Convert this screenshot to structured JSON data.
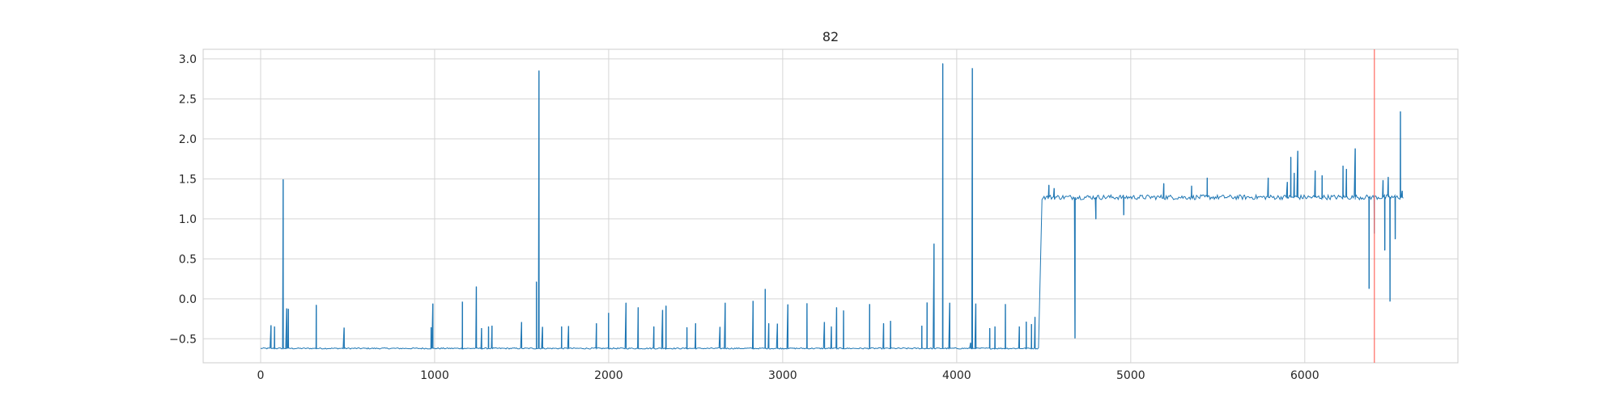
{
  "chart_data": {
    "type": "line",
    "title": "82",
    "xlabel": "",
    "ylabel": "",
    "xlim": [
      -330,
      6880
    ],
    "ylim": [
      -0.8,
      3.12
    ],
    "grid": true,
    "xticks": [
      0,
      1000,
      2000,
      3000,
      4000,
      5000,
      6000
    ],
    "yticks": [
      -0.5,
      0.0,
      0.5,
      1.0,
      1.5,
      2.0,
      2.5,
      3.0
    ],
    "xtick_labels": [
      "0",
      "1000",
      "2000",
      "3000",
      "4000",
      "5000",
      "6000"
    ],
    "ytick_labels": [
      "−0.5",
      "0.0",
      "0.5",
      "1.0",
      "1.5",
      "2.0",
      "2.5",
      "3.0"
    ],
    "series_color": "#1f77b4",
    "marker_line": {
      "x": 6400,
      "color": "#ff6961"
    },
    "segments": [
      {
        "x_start": 0,
        "x_end": 4470,
        "base": -0.62,
        "noise": 0.008
      },
      {
        "x_start": 4490,
        "x_end": 6570,
        "base": 1.27,
        "noise": 0.03
      }
    ],
    "jump": {
      "x": 4470,
      "from": -0.62,
      "to": 1.27
    },
    "spikes": [
      {
        "x": 60,
        "y": -0.33
      },
      {
        "x": 80,
        "y": -0.35
      },
      {
        "x": 130,
        "y": 1.49
      },
      {
        "x": 150,
        "y": -0.12
      },
      {
        "x": 160,
        "y": -0.13
      },
      {
        "x": 320,
        "y": -0.08
      },
      {
        "x": 480,
        "y": -0.36
      },
      {
        "x": 980,
        "y": -0.36
      },
      {
        "x": 990,
        "y": -0.06
      },
      {
        "x": 1160,
        "y": -0.04
      },
      {
        "x": 1240,
        "y": 0.15
      },
      {
        "x": 1270,
        "y": -0.37
      },
      {
        "x": 1310,
        "y": -0.35
      },
      {
        "x": 1330,
        "y": -0.34
      },
      {
        "x": 1500,
        "y": -0.29
      },
      {
        "x": 1585,
        "y": 0.21
      },
      {
        "x": 1600,
        "y": 2.85
      },
      {
        "x": 1620,
        "y": -0.35
      },
      {
        "x": 1730,
        "y": -0.35
      },
      {
        "x": 1770,
        "y": -0.34
      },
      {
        "x": 1930,
        "y": -0.31
      },
      {
        "x": 2000,
        "y": -0.18
      },
      {
        "x": 2100,
        "y": -0.05
      },
      {
        "x": 2170,
        "y": -0.11
      },
      {
        "x": 2260,
        "y": -0.35
      },
      {
        "x": 2310,
        "y": -0.14
      },
      {
        "x": 2330,
        "y": -0.09
      },
      {
        "x": 2450,
        "y": -0.36
      },
      {
        "x": 2500,
        "y": -0.31
      },
      {
        "x": 2640,
        "y": -0.35
      },
      {
        "x": 2670,
        "y": -0.05
      },
      {
        "x": 2830,
        "y": -0.03
      },
      {
        "x": 2900,
        "y": 0.12
      },
      {
        "x": 2920,
        "y": -0.31
      },
      {
        "x": 2970,
        "y": -0.31
      },
      {
        "x": 3030,
        "y": -0.07
      },
      {
        "x": 3140,
        "y": -0.06
      },
      {
        "x": 3240,
        "y": -0.29
      },
      {
        "x": 3280,
        "y": -0.35
      },
      {
        "x": 3310,
        "y": -0.11
      },
      {
        "x": 3350,
        "y": -0.15
      },
      {
        "x": 3500,
        "y": -0.07
      },
      {
        "x": 3580,
        "y": -0.31
      },
      {
        "x": 3620,
        "y": -0.28
      },
      {
        "x": 3800,
        "y": -0.34
      },
      {
        "x": 3830,
        "y": -0.05
      },
      {
        "x": 3870,
        "y": 0.69
      },
      {
        "x": 3920,
        "y": 2.94
      },
      {
        "x": 3960,
        "y": -0.05
      },
      {
        "x": 4080,
        "y": -0.55
      },
      {
        "x": 4090,
        "y": 2.88
      },
      {
        "x": 4110,
        "y": -0.06
      },
      {
        "x": 4190,
        "y": -0.37
      },
      {
        "x": 4220,
        "y": -0.35
      },
      {
        "x": 4280,
        "y": -0.07
      },
      {
        "x": 4360,
        "y": -0.35
      },
      {
        "x": 4400,
        "y": -0.29
      },
      {
        "x": 4430,
        "y": -0.32
      },
      {
        "x": 4450,
        "y": -0.23
      },
      {
        "x": 4530,
        "y": 1.42
      },
      {
        "x": 4560,
        "y": 1.38
      },
      {
        "x": 4680,
        "y": -0.49
      },
      {
        "x": 4800,
        "y": 1.0
      },
      {
        "x": 4960,
        "y": 1.05
      },
      {
        "x": 5190,
        "y": 1.44
      },
      {
        "x": 5350,
        "y": 1.41
      },
      {
        "x": 5440,
        "y": 1.51
      },
      {
        "x": 5790,
        "y": 1.51
      },
      {
        "x": 5900,
        "y": 1.46
      },
      {
        "x": 5920,
        "y": 1.77
      },
      {
        "x": 5940,
        "y": 1.57
      },
      {
        "x": 5960,
        "y": 1.85
      },
      {
        "x": 6060,
        "y": 1.6
      },
      {
        "x": 6100,
        "y": 1.54
      },
      {
        "x": 6220,
        "y": 1.66
      },
      {
        "x": 6240,
        "y": 1.62
      },
      {
        "x": 6290,
        "y": 1.88
      },
      {
        "x": 6370,
        "y": 0.13
      },
      {
        "x": 6400,
        "y": 0.82
      },
      {
        "x": 6450,
        "y": 1.48
      },
      {
        "x": 6460,
        "y": 0.61
      },
      {
        "x": 6480,
        "y": 1.52
      },
      {
        "x": 6490,
        "y": -0.03
      },
      {
        "x": 6520,
        "y": 0.75
      },
      {
        "x": 6550,
        "y": 2.34
      },
      {
        "x": 6560,
        "y": 1.35
      }
    ]
  }
}
